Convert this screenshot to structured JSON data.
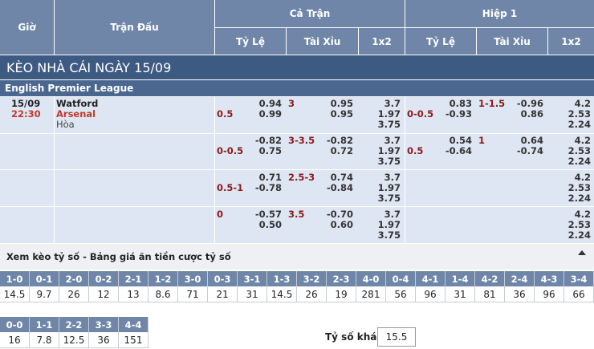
{
  "header": {
    "gio": "Giờ",
    "tran_dau": "Trận Đấu",
    "ca_tran": "Cả Trận",
    "hiep_1": "Hiệp 1",
    "ty_le": "Tỷ Lệ",
    "tai_xiu": "Tài Xỉu",
    "x12": "1x2"
  },
  "title": "KÈO NHÀ CÁI NGÀY 15/09",
  "league": "English Premier League",
  "match": {
    "date": "15/09",
    "time": "22:30",
    "home": "Watford",
    "away": "Arsenal",
    "draw": "Hòa"
  },
  "rows": [
    {
      "ft_hdp": "0.5",
      "ft_hdp_o1": "0.94",
      "ft_hdp_o2": "0.99",
      "ft_ou": "3",
      "ft_ou_o1": "0.95",
      "ft_ou_o2": "0.95",
      "ft_1": "3.7",
      "ft_x": "1.97",
      "ft_2": "3.75",
      "h1_hdp": "0-0.5",
      "h1_hdp_o1": "0.83",
      "h1_hdp_o2": "-0.93",
      "h1_ou": "1-1.5",
      "h1_ou_o1": "-0.96",
      "h1_ou_o2": "0.86",
      "h1_1": "4.2",
      "h1_x": "2.53",
      "h1_2": "2.24"
    },
    {
      "ft_hdp": "0-0.5",
      "ft_hdp_o1": "-0.82",
      "ft_hdp_o2": "0.75",
      "ft_ou": "3-3.5",
      "ft_ou_o1": "-0.82",
      "ft_ou_o2": "0.72",
      "ft_1": "3.7",
      "ft_x": "1.97",
      "ft_2": "3.75",
      "h1_hdp": "0.5",
      "h1_hdp_o1": "0.54",
      "h1_hdp_o2": "-0.64",
      "h1_ou": "1",
      "h1_ou_o1": "0.64",
      "h1_ou_o2": "-0.74",
      "h1_1": "4.2",
      "h1_x": "2.53",
      "h1_2": "2.24"
    },
    {
      "ft_hdp": "0.5-1",
      "ft_hdp_o1": "0.71",
      "ft_hdp_o2": "-0.78",
      "ft_ou": "2.5-3",
      "ft_ou_o1": "0.74",
      "ft_ou_o2": "-0.84",
      "ft_1": "3.7",
      "ft_x": "1.97",
      "ft_2": "3.75",
      "h1_hdp": "",
      "h1_hdp_o1": "",
      "h1_hdp_o2": "",
      "h1_ou": "",
      "h1_ou_o1": "",
      "h1_ou_o2": "",
      "h1_1": "4.2",
      "h1_x": "2.53",
      "h1_2": "2.24"
    },
    {
      "ft_hdp": "0",
      "ft_hdp_o1": "-0.57",
      "ft_hdp_o2": "0.50",
      "ft_ou": "3.5",
      "ft_ou_o1": "-0.70",
      "ft_ou_o2": "0.60",
      "ft_1": "3.7",
      "ft_x": "1.97",
      "ft_2": "3.75",
      "h1_hdp": "",
      "h1_hdp_o1": "",
      "h1_hdp_o2": "",
      "h1_ou": "",
      "h1_ou_o1": "",
      "h1_ou_o2": "",
      "h1_1": "4.2",
      "h1_x": "2.53",
      "h1_2": "2.24"
    }
  ],
  "score_section": {
    "title": "Xem kèo tỷ số - Bảng giá ăn tiền cược tỷ số",
    "collapse_icon": "arrow-up-icon",
    "row1": [
      {
        "s": "1-0",
        "o": "14.5"
      },
      {
        "s": "0-1",
        "o": "9.7"
      },
      {
        "s": "2-0",
        "o": "26"
      },
      {
        "s": "0-2",
        "o": "12"
      },
      {
        "s": "2-1",
        "o": "13"
      },
      {
        "s": "1-2",
        "o": "8.6"
      },
      {
        "s": "3-0",
        "o": "71"
      },
      {
        "s": "0-3",
        "o": "21"
      },
      {
        "s": "3-1",
        "o": "31"
      },
      {
        "s": "1-3",
        "o": "14.5"
      },
      {
        "s": "3-2",
        "o": "26"
      },
      {
        "s": "2-3",
        "o": "19"
      },
      {
        "s": "4-0",
        "o": "281"
      },
      {
        "s": "0-4",
        "o": "56"
      },
      {
        "s": "4-1",
        "o": "96"
      },
      {
        "s": "1-4",
        "o": "31"
      },
      {
        "s": "4-2",
        "o": "81"
      },
      {
        "s": "2-4",
        "o": "36"
      },
      {
        "s": "4-3",
        "o": "96"
      },
      {
        "s": "3-4",
        "o": "66"
      }
    ],
    "row2": [
      {
        "s": "0-0",
        "o": "16"
      },
      {
        "s": "1-1",
        "o": "7.8"
      },
      {
        "s": "2-2",
        "o": "12.5"
      },
      {
        "s": "3-3",
        "o": "36"
      },
      {
        "s": "4-4",
        "o": "151"
      }
    ],
    "other_label": "Tỷ số khác",
    "other_value": "15.5"
  }
}
